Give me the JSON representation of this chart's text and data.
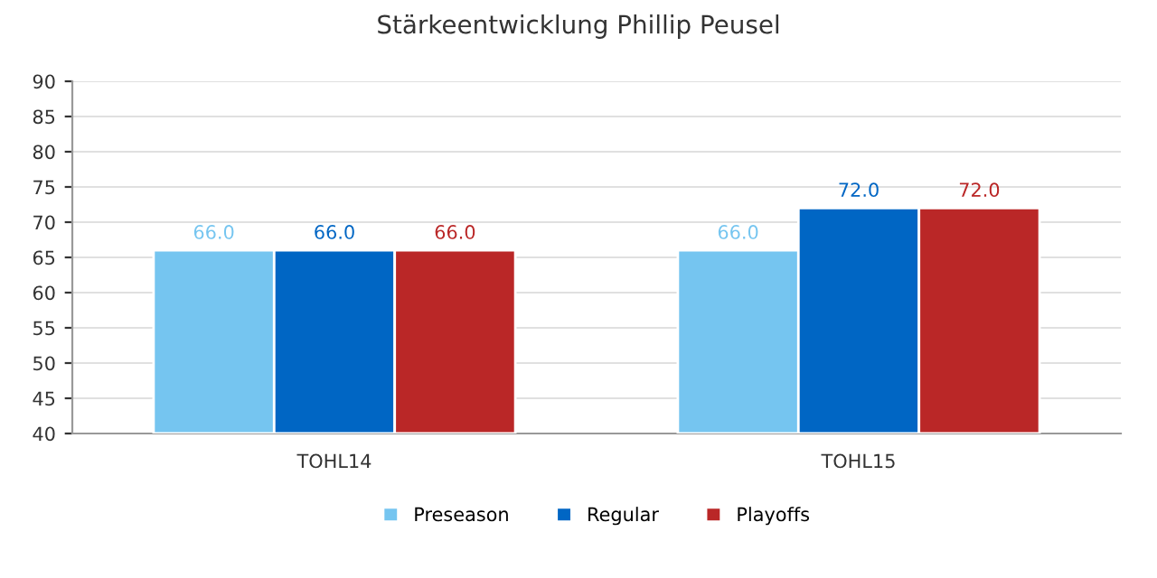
{
  "chart_data": {
    "type": "bar",
    "title": "Stärkeentwicklung Phillip Peusel",
    "categories": [
      "TOHL14",
      "TOHL15"
    ],
    "series": [
      {
        "name": "Preseason",
        "color": "#75c5f0",
        "values": [
          66.0,
          66.0
        ],
        "value_labels": [
          "66.0",
          "66.0"
        ]
      },
      {
        "name": "Regular",
        "color": "#0066c4",
        "values": [
          66.0,
          72.0
        ],
        "value_labels": [
          "66.0",
          "72.0"
        ]
      },
      {
        "name": "Playoffs",
        "color": "#ba2727",
        "values": [
          66.0,
          72.0
        ],
        "value_labels": [
          "66.0",
          "72.0"
        ]
      }
    ],
    "ylim": [
      40,
      90
    ],
    "yticks": [
      40,
      45,
      50,
      55,
      60,
      65,
      70,
      75,
      80,
      85,
      90
    ],
    "grid": "y",
    "legend": "bottom"
  }
}
